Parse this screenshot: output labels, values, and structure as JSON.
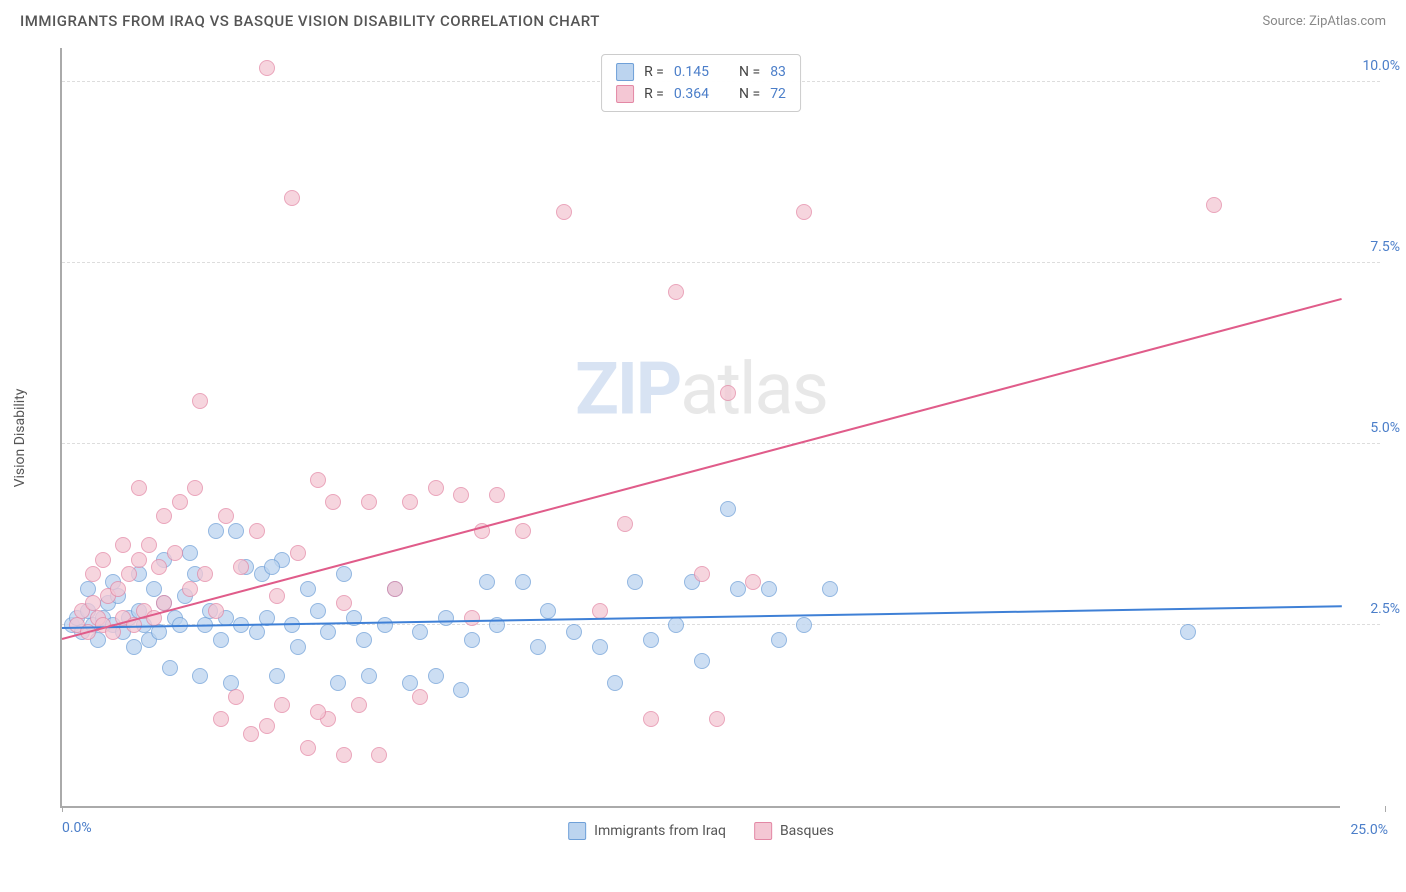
{
  "title": "IMMIGRANTS FROM IRAQ VS BASQUE VISION DISABILITY CORRELATION CHART",
  "source_label": "Source: ZipAtlas.com",
  "y_axis_label": "Vision Disability",
  "watermark_bold": "ZIP",
  "watermark_light": "atlas",
  "chart": {
    "type": "scatter",
    "background_color": "#ffffff",
    "grid_color": "#dddddd",
    "grid_dash": "4,4",
    "axis_color": "#aaaaaa",
    "xlim": [
      0,
      25
    ],
    "ylim": [
      0,
      10.5
    ],
    "x_tick_labels": [
      "0.0%",
      "25.0%"
    ],
    "y_ticks": [
      {
        "value": 2.5,
        "label": "2.5%"
      },
      {
        "value": 5.0,
        "label": "5.0%"
      },
      {
        "value": 7.5,
        "label": "7.5%"
      },
      {
        "value": 10.0,
        "label": "10.0%"
      }
    ],
    "tick_color": "#4b7ec9",
    "tick_fontsize": 14,
    "marker_radius": 8,
    "marker_opacity": 0.75,
    "series": [
      {
        "id": "iraq",
        "label": "Immigrants from Iraq",
        "fill": "#bcd4ef",
        "stroke": "#6fa0d8",
        "line_color": "#3f80d6",
        "r_value": "0.145",
        "n_value": "83",
        "trend": {
          "x1": 0,
          "y1": 2.45,
          "x2": 25,
          "y2": 2.75,
          "width": 2
        },
        "points": [
          [
            0.2,
            2.5
          ],
          [
            0.3,
            2.6
          ],
          [
            0.4,
            2.4
          ],
          [
            0.5,
            2.7
          ],
          [
            0.6,
            2.5
          ],
          [
            0.7,
            2.3
          ],
          [
            0.8,
            2.6
          ],
          [
            0.9,
            2.8
          ],
          [
            1.0,
            2.5
          ],
          [
            1.1,
            2.9
          ],
          [
            1.2,
            2.4
          ],
          [
            1.3,
            2.6
          ],
          [
            1.4,
            2.2
          ],
          [
            1.5,
            2.7
          ],
          [
            1.6,
            2.5
          ],
          [
            1.7,
            2.3
          ],
          [
            1.8,
            3.0
          ],
          [
            1.9,
            2.4
          ],
          [
            2.0,
            2.8
          ],
          [
            2.1,
            1.9
          ],
          [
            2.2,
            2.6
          ],
          [
            2.3,
            2.5
          ],
          [
            2.4,
            2.9
          ],
          [
            2.6,
            3.2
          ],
          [
            2.7,
            1.8
          ],
          [
            2.8,
            2.5
          ],
          [
            2.9,
            2.7
          ],
          [
            3.0,
            3.8
          ],
          [
            3.1,
            2.3
          ],
          [
            3.2,
            2.6
          ],
          [
            3.3,
            1.7
          ],
          [
            3.5,
            2.5
          ],
          [
            3.6,
            3.3
          ],
          [
            3.8,
            2.4
          ],
          [
            3.9,
            3.2
          ],
          [
            4.0,
            2.6
          ],
          [
            4.2,
            1.8
          ],
          [
            4.3,
            3.4
          ],
          [
            4.5,
            2.5
          ],
          [
            4.6,
            2.2
          ],
          [
            4.8,
            3.0
          ],
          [
            5.0,
            2.7
          ],
          [
            5.2,
            2.4
          ],
          [
            5.4,
            1.7
          ],
          [
            5.5,
            3.2
          ],
          [
            5.7,
            2.6
          ],
          [
            5.9,
            2.3
          ],
          [
            6.0,
            1.8
          ],
          [
            6.3,
            2.5
          ],
          [
            6.5,
            3.0
          ],
          [
            6.8,
            1.7
          ],
          [
            7.0,
            2.4
          ],
          [
            7.3,
            1.8
          ],
          [
            7.5,
            2.6
          ],
          [
            7.8,
            1.6
          ],
          [
            8.0,
            2.3
          ],
          [
            8.3,
            3.1
          ],
          [
            8.5,
            2.5
          ],
          [
            9.0,
            3.1
          ],
          [
            9.3,
            2.2
          ],
          [
            9.5,
            2.7
          ],
          [
            10.0,
            2.4
          ],
          [
            10.5,
            2.2
          ],
          [
            10.8,
            1.7
          ],
          [
            11.2,
            3.1
          ],
          [
            11.5,
            2.3
          ],
          [
            12.0,
            2.5
          ],
          [
            12.3,
            3.1
          ],
          [
            12.5,
            2.0
          ],
          [
            13.0,
            4.1
          ],
          [
            13.2,
            3.0
          ],
          [
            13.8,
            3.0
          ],
          [
            14.0,
            2.3
          ],
          [
            14.5,
            2.5
          ],
          [
            15.0,
            3.0
          ],
          [
            22.0,
            2.4
          ],
          [
            2.5,
            3.5
          ],
          [
            3.4,
            3.8
          ],
          [
            4.1,
            3.3
          ],
          [
            1.5,
            3.2
          ],
          [
            2.0,
            3.4
          ],
          [
            0.5,
            3.0
          ],
          [
            1.0,
            3.1
          ]
        ]
      },
      {
        "id": "basque",
        "label": "Basques",
        "fill": "#f4c7d4",
        "stroke": "#e388a5",
        "line_color": "#e05c8a",
        "r_value": "0.364",
        "n_value": "72",
        "trend": {
          "x1": 0,
          "y1": 2.3,
          "x2": 25,
          "y2": 7.0,
          "width": 2
        },
        "points": [
          [
            0.3,
            2.5
          ],
          [
            0.4,
            2.7
          ],
          [
            0.5,
            2.4
          ],
          [
            0.6,
            2.8
          ],
          [
            0.7,
            2.6
          ],
          [
            0.8,
            2.5
          ],
          [
            0.9,
            2.9
          ],
          [
            1.0,
            2.4
          ],
          [
            1.1,
            3.0
          ],
          [
            1.2,
            2.6
          ],
          [
            1.3,
            3.2
          ],
          [
            1.4,
            2.5
          ],
          [
            1.5,
            3.4
          ],
          [
            1.6,
            2.7
          ],
          [
            1.7,
            3.6
          ],
          [
            1.8,
            2.6
          ],
          [
            1.9,
            3.3
          ],
          [
            2.0,
            2.8
          ],
          [
            2.2,
            3.5
          ],
          [
            2.3,
            4.2
          ],
          [
            2.5,
            3.0
          ],
          [
            2.6,
            4.4
          ],
          [
            2.7,
            5.6
          ],
          [
            2.8,
            3.2
          ],
          [
            3.0,
            2.7
          ],
          [
            3.1,
            1.2
          ],
          [
            3.2,
            4.0
          ],
          [
            3.4,
            1.5
          ],
          [
            3.5,
            3.3
          ],
          [
            3.7,
            1.0
          ],
          [
            3.8,
            3.8
          ],
          [
            4.0,
            10.2
          ],
          [
            4.2,
            2.9
          ],
          [
            4.3,
            1.4
          ],
          [
            4.5,
            8.4
          ],
          [
            4.6,
            3.5
          ],
          [
            4.8,
            0.8
          ],
          [
            5.0,
            4.5
          ],
          [
            5.2,
            1.2
          ],
          [
            5.3,
            4.2
          ],
          [
            5.5,
            2.8
          ],
          [
            5.8,
            1.4
          ],
          [
            6.0,
            4.2
          ],
          [
            6.2,
            0.7
          ],
          [
            6.5,
            3.0
          ],
          [
            6.8,
            4.2
          ],
          [
            7.0,
            1.5
          ],
          [
            7.3,
            4.4
          ],
          [
            7.8,
            4.3
          ],
          [
            8.0,
            2.6
          ],
          [
            8.2,
            3.8
          ],
          [
            8.5,
            4.3
          ],
          [
            9.0,
            3.8
          ],
          [
            9.8,
            8.2
          ],
          [
            10.5,
            2.7
          ],
          [
            11.0,
            3.9
          ],
          [
            11.5,
            1.2
          ],
          [
            12.0,
            7.1
          ],
          [
            12.5,
            3.2
          ],
          [
            12.8,
            1.2
          ],
          [
            13.0,
            5.7
          ],
          [
            13.5,
            3.1
          ],
          [
            14.5,
            8.2
          ],
          [
            22.5,
            8.3
          ],
          [
            1.5,
            4.4
          ],
          [
            2.0,
            4.0
          ],
          [
            0.8,
            3.4
          ],
          [
            1.2,
            3.6
          ],
          [
            0.6,
            3.2
          ],
          [
            4.0,
            1.1
          ],
          [
            5.0,
            1.3
          ],
          [
            5.5,
            0.7
          ]
        ]
      }
    ],
    "legend_top": {
      "border_color": "#cccccc",
      "r_label": "R =",
      "n_label": "N ="
    },
    "legend_bottom": {}
  }
}
